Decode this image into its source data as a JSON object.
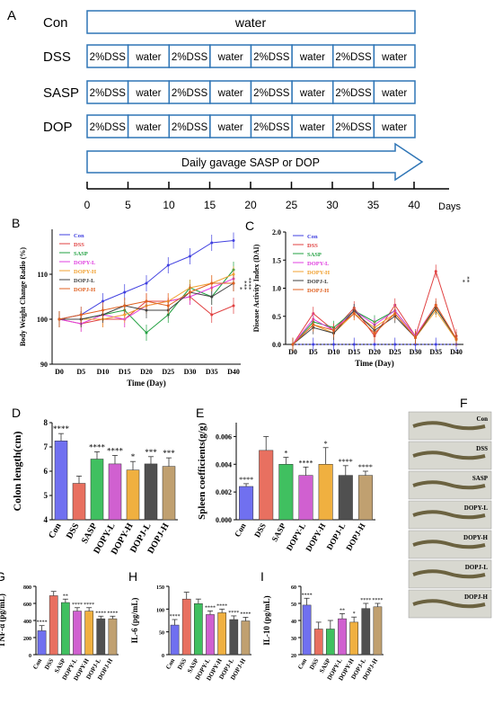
{
  "panelA": {
    "label": "A",
    "rows": [
      {
        "name": "Con",
        "segments": [
          "water"
        ]
      },
      {
        "name": "DSS",
        "segments": [
          "2%DSS",
          "water",
          "2%DSS",
          "water",
          "2%DSS",
          "water",
          "2%DSS",
          "water"
        ]
      },
      {
        "name": "SASP",
        "segments": [
          "2%DSS",
          "water",
          "2%DSS",
          "water",
          "2%DSS",
          "water",
          "2%DSS",
          "water"
        ]
      },
      {
        "name": "DOP",
        "segments": [
          "2%DSS",
          "water",
          "2%DSS",
          "water",
          "2%DSS",
          "water",
          "2%DSS",
          "water"
        ]
      }
    ],
    "arrow_label": "Daily gavage SASP or DOP",
    "timeline_ticks": [
      "0",
      "5",
      "10",
      "15",
      "20",
      "25",
      "30",
      "35",
      "40"
    ],
    "timeline_unit": "Days"
  },
  "colors": {
    "box": "#2e75b6",
    "Con": "#4040e0",
    "DSS": "#e04040",
    "SASP": "#20a040",
    "DOPY-L": "#e040e0",
    "DOPY-H": "#f0a030",
    "DOPJ-L": "#404040",
    "DOPJ-H": "#e06020"
  },
  "chart_data": [
    {
      "type": "line",
      "panel": "B",
      "xlabel": "Time (Day)",
      "ylabel": "Body Weight Change Radio (%)",
      "categories": [
        "D0",
        "D5",
        "D10",
        "D15",
        "D20",
        "D25",
        "D30",
        "D35",
        "D40"
      ],
      "ylim": [
        90,
        120
      ],
      "yticks": [
        "90",
        "100",
        "110"
      ],
      "series": [
        {
          "name": "Con",
          "values": [
            100,
            101,
            104,
            106,
            108,
            112,
            114,
            117,
            117.5
          ]
        },
        {
          "name": "DSS",
          "values": [
            100,
            99,
            100,
            100,
            104,
            104,
            105,
            101,
            103
          ]
        },
        {
          "name": "SASP",
          "values": [
            100,
            100,
            101,
            102,
            97,
            101,
            107,
            105,
            111
          ]
        },
        {
          "name": "DOPY-L",
          "values": [
            100,
            99,
            101,
            100,
            103,
            104,
            105,
            107,
            109
          ]
        },
        {
          "name": "DOPY-H",
          "values": [
            100,
            100,
            100,
            101,
            103,
            104,
            107,
            108,
            110
          ]
        },
        {
          "name": "DOPJ-L",
          "values": [
            100,
            100,
            101,
            103,
            102,
            102,
            106,
            105,
            108
          ]
        },
        {
          "name": "DOPJ-H",
          "values": [
            100,
            101,
            102,
            103,
            104,
            103,
            106,
            108,
            108
          ]
        }
      ],
      "annotations": [
        "*",
        "***",
        "****"
      ]
    },
    {
      "type": "line",
      "panel": "C",
      "xlabel": "Time (Day)",
      "ylabel": "Disease Activity Index (DAI)",
      "categories": [
        "D0",
        "D5",
        "D10",
        "D15",
        "D20",
        "D25",
        "D30",
        "D35",
        "D40"
      ],
      "ylim": [
        0,
        2
      ],
      "yticks": [
        "0.0",
        "0.5",
        "1.0",
        "1.5",
        "2.0"
      ],
      "series": [
        {
          "name": "Con",
          "values": [
            0,
            0,
            0,
            0,
            0,
            0,
            0,
            0,
            0
          ]
        },
        {
          "name": "DSS",
          "values": [
            0,
            0.55,
            0.25,
            0.65,
            0.15,
            0.7,
            0.15,
            1.3,
            0.15
          ]
        },
        {
          "name": "SASP",
          "values": [
            0,
            0.4,
            0.3,
            0.6,
            0.4,
            0.6,
            0.15,
            0.65,
            0.1
          ]
        },
        {
          "name": "DOPY-L",
          "values": [
            0,
            0.45,
            0.25,
            0.6,
            0.35,
            0.6,
            0.15,
            0.7,
            0.1
          ]
        },
        {
          "name": "DOPY-H",
          "values": [
            0,
            0.35,
            0.2,
            0.55,
            0.3,
            0.55,
            0.12,
            0.6,
            0.08
          ]
        },
        {
          "name": "DOPJ-L",
          "values": [
            0,
            0.3,
            0.2,
            0.6,
            0.25,
            0.5,
            0.12,
            0.65,
            0.1
          ]
        },
        {
          "name": "DOPJ-H",
          "values": [
            0,
            0.35,
            0.25,
            0.55,
            0.2,
            0.55,
            0.12,
            0.7,
            0.1
          ]
        }
      ],
      "annotations": [
        "*",
        "**"
      ]
    },
    {
      "type": "bar",
      "panel": "D",
      "ylabel": "Colon length(cm)",
      "categories": [
        "Con",
        "DSS",
        "SASP",
        "DOPY-L",
        "DOPY-H",
        "DOPJ-L",
        "DOPJ-H"
      ],
      "values": [
        7.25,
        5.5,
        6.5,
        6.3,
        6.05,
        6.3,
        6.2
      ],
      "errors": [
        0.3,
        0.3,
        0.3,
        0.35,
        0.35,
        0.3,
        0.35
      ],
      "sig": [
        "****",
        "",
        "****",
        "****",
        "*",
        "***",
        "***"
      ],
      "ylim": [
        4,
        8
      ],
      "yticks": [
        "4",
        "5",
        "6",
        "7",
        "8"
      ]
    },
    {
      "type": "bar",
      "panel": "E",
      "ylabel": "Spleen coefficients(g/g)",
      "categories": [
        "Con",
        "DSS",
        "SASP",
        "DOPY-L",
        "DOPY-H",
        "DOPJ-L",
        "DOPJ-H"
      ],
      "values": [
        0.0024,
        0.005,
        0.004,
        0.0032,
        0.004,
        0.0032,
        0.0032
      ],
      "errors": [
        0.0002,
        0.001,
        0.0005,
        0.0006,
        0.0012,
        0.0007,
        0.0003
      ],
      "sig": [
        "****",
        "",
        "*",
        "****",
        "*",
        "****",
        "****"
      ],
      "ylim": [
        0,
        0.007
      ],
      "yticks": [
        "0.000",
        "0.002",
        "0.004",
        "0.006"
      ]
    },
    {
      "type": "bar",
      "panel": "G",
      "ylabel": "TNF-α (pg/mL)",
      "categories": [
        "Con",
        "DSS",
        "SASP",
        "DOPY-L",
        "DOPY-H",
        "DOPJ-L",
        "DOPJ-H"
      ],
      "values": [
        280,
        690,
        610,
        510,
        510,
        420,
        420
      ],
      "errors": [
        60,
        50,
        40,
        40,
        40,
        30,
        30
      ],
      "sig": [
        "****",
        "",
        "**",
        "****",
        "****",
        "****",
        "****"
      ],
      "ylim": [
        0,
        800
      ],
      "yticks": [
        "0",
        "200",
        "400",
        "600",
        "800"
      ]
    },
    {
      "type": "bar",
      "panel": "H",
      "ylabel": "IL-6 (pg/mL)",
      "categories": [
        "Con",
        "DSS",
        "SASP",
        "DOPY-L",
        "DOPY-H",
        "DOPJ-L",
        "DOPJ-H"
      ],
      "values": [
        65,
        122,
        112,
        88,
        92,
        77,
        74
      ],
      "errors": [
        12,
        15,
        10,
        8,
        8,
        8,
        8
      ],
      "sig": [
        "****",
        "",
        "",
        "****",
        "****",
        "****",
        "****"
      ],
      "ylim": [
        0,
        150
      ],
      "yticks": [
        "0",
        "50",
        "100",
        "150"
      ]
    },
    {
      "type": "bar",
      "panel": "I",
      "ylabel": "IL-10 (pg/mL)",
      "categories": [
        "Con",
        "DSS",
        "SASP",
        "DOPY-L",
        "DOPY-H",
        "DOPJ-L",
        "DOPJ-H"
      ],
      "values": [
        49,
        35,
        35,
        41,
        39,
        47,
        48
      ],
      "errors": [
        4,
        4,
        5,
        3,
        3,
        3,
        2
      ],
      "sig": [
        "****",
        "",
        "",
        "**",
        "*",
        "****",
        "****"
      ],
      "ylim": [
        20,
        60
      ],
      "yticks": [
        "20",
        "30",
        "40",
        "50",
        "60"
      ]
    }
  ],
  "panelF": {
    "label": "F",
    "photos": [
      "Con",
      "DSS",
      "SASP",
      "DOPY-L",
      "DOPY-H",
      "DOPJ-L",
      "DOPJ-H"
    ]
  }
}
